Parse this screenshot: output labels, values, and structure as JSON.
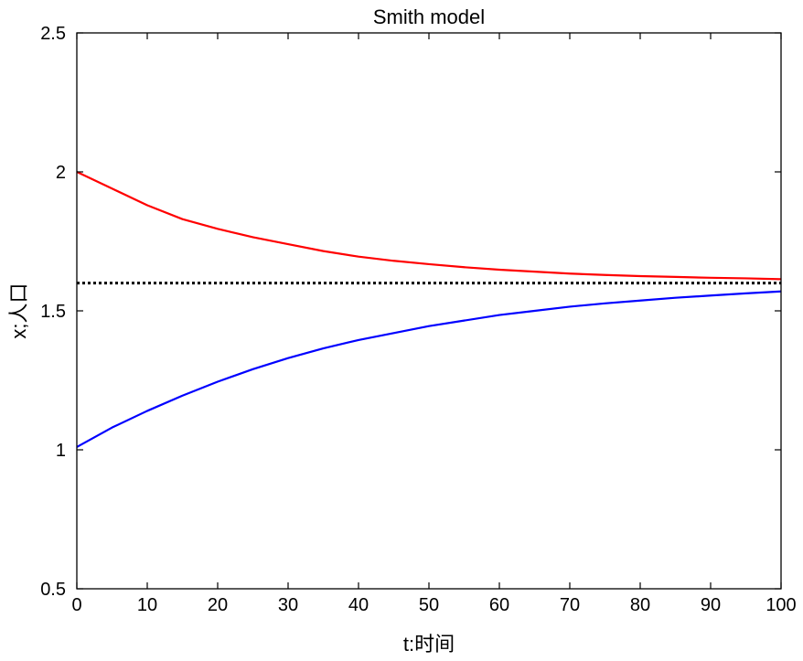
{
  "chart_data": {
    "type": "line",
    "title": "Smith model",
    "xlabel": "t:时间",
    "ylabel": "x;人口",
    "xlim": [
      0,
      100
    ],
    "ylim": [
      0.5,
      2.5
    ],
    "x_ticks": [
      0,
      10,
      20,
      30,
      40,
      50,
      60,
      70,
      80,
      90,
      100
    ],
    "y_ticks": [
      0.5,
      1,
      1.5,
      2,
      2.5
    ],
    "grid": false,
    "reference_line": {
      "y": 1.6,
      "style": "dotted",
      "color": "#000000"
    },
    "series": [
      {
        "color": "#ff0000",
        "x": [
          0,
          5,
          10,
          15,
          20,
          25,
          30,
          35,
          40,
          45,
          50,
          55,
          60,
          65,
          70,
          75,
          80,
          85,
          90,
          95,
          100
        ],
        "y": [
          2.0,
          1.94,
          1.88,
          1.83,
          1.795,
          1.765,
          1.74,
          1.715,
          1.695,
          1.68,
          1.668,
          1.657,
          1.648,
          1.641,
          1.634,
          1.629,
          1.625,
          1.622,
          1.619,
          1.617,
          1.614
        ]
      },
      {
        "color": "#0000ff",
        "x": [
          0,
          5,
          10,
          15,
          20,
          25,
          30,
          35,
          40,
          45,
          50,
          55,
          60,
          65,
          70,
          75,
          80,
          85,
          90,
          95,
          100
        ],
        "y": [
          1.01,
          1.08,
          1.14,
          1.195,
          1.245,
          1.29,
          1.33,
          1.365,
          1.395,
          1.42,
          1.445,
          1.465,
          1.485,
          1.5,
          1.515,
          1.527,
          1.537,
          1.547,
          1.555,
          1.563,
          1.57
        ]
      }
    ]
  }
}
